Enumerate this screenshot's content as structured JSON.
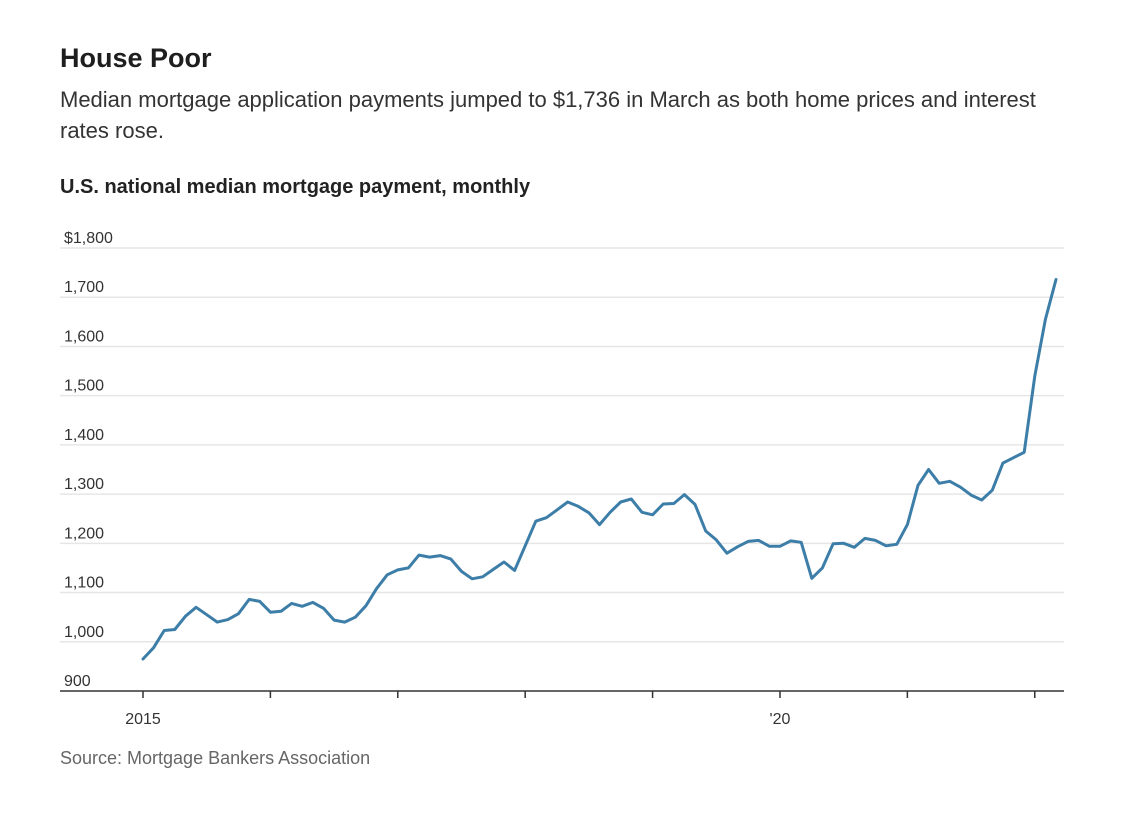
{
  "header": {
    "title": "House Poor",
    "subtitle": "Median mortgage application payments jumped to $1,736 in March as both home prices and interest rates rose."
  },
  "chart_label": "U.S. national median mortgage payment, monthly",
  "source": "Source: Mortgage Bankers Association",
  "colors": {
    "line": "#3d7ea9",
    "grid": "#e6e6e6",
    "axis": "#333333"
  },
  "chart_data": {
    "type": "line",
    "title": "U.S. national median mortgage payment, monthly",
    "xlabel": "",
    "ylabel": "",
    "ylim": [
      900,
      1800
    ],
    "y_ticks": [
      {
        "value": 900,
        "label": "900"
      },
      {
        "value": 1000,
        "label": "1,000"
      },
      {
        "value": 1100,
        "label": "1,100"
      },
      {
        "value": 1200,
        "label": "1,200"
      },
      {
        "value": 1300,
        "label": "1,300"
      },
      {
        "value": 1400,
        "label": "1,400"
      },
      {
        "value": 1500,
        "label": "1,500"
      },
      {
        "value": 1600,
        "label": "1,600"
      },
      {
        "value": 1700,
        "label": "1,700"
      },
      {
        "value": 1800,
        "label": "$1,800"
      }
    ],
    "x_ticks": [
      {
        "date": "2015-01",
        "label": "2015"
      },
      {
        "date": "2016-01",
        "label": ""
      },
      {
        "date": "2017-01",
        "label": ""
      },
      {
        "date": "2018-01",
        "label": ""
      },
      {
        "date": "2019-01",
        "label": ""
      },
      {
        "date": "2020-01",
        "label": "'20"
      },
      {
        "date": "2021-01",
        "label": ""
      },
      {
        "date": "2022-01",
        "label": ""
      }
    ],
    "x": [
      "2015-01",
      "2015-02",
      "2015-03",
      "2015-04",
      "2015-05",
      "2015-06",
      "2015-07",
      "2015-08",
      "2015-09",
      "2015-10",
      "2015-11",
      "2015-12",
      "2016-01",
      "2016-02",
      "2016-03",
      "2016-04",
      "2016-05",
      "2016-06",
      "2016-07",
      "2016-08",
      "2016-09",
      "2016-10",
      "2016-11",
      "2016-12",
      "2017-01",
      "2017-02",
      "2017-03",
      "2017-04",
      "2017-05",
      "2017-06",
      "2017-07",
      "2017-08",
      "2017-09",
      "2017-10",
      "2017-11",
      "2017-12",
      "2018-01",
      "2018-02",
      "2018-03",
      "2018-04",
      "2018-05",
      "2018-06",
      "2018-07",
      "2018-08",
      "2018-09",
      "2018-10",
      "2018-11",
      "2018-12",
      "2019-01",
      "2019-02",
      "2019-03",
      "2019-04",
      "2019-05",
      "2019-06",
      "2019-07",
      "2019-08",
      "2019-09",
      "2019-10",
      "2019-11",
      "2019-12",
      "2020-01",
      "2020-02",
      "2020-03",
      "2020-04",
      "2020-05",
      "2020-06",
      "2020-07",
      "2020-08",
      "2020-09",
      "2020-10",
      "2020-11",
      "2020-12",
      "2021-01",
      "2021-02",
      "2021-03",
      "2021-04",
      "2021-05",
      "2021-06",
      "2021-07",
      "2021-08",
      "2021-09",
      "2021-10",
      "2021-11",
      "2021-12",
      "2022-01",
      "2022-02",
      "2022-03"
    ],
    "series": [
      {
        "values": [
          965,
          988,
          1023,
          1025,
          1052,
          1070,
          1055,
          1040,
          1045,
          1057,
          1086,
          1082,
          1060,
          1062,
          1078,
          1072,
          1080,
          1068,
          1044,
          1040,
          1050,
          1073,
          1108,
          1136,
          1146,
          1150,
          1176,
          1172,
          1175,
          1168,
          1143,
          1128,
          1132,
          1147,
          1162,
          1145,
          1195,
          1245,
          1252,
          1268,
          1284,
          1275,
          1262,
          1238,
          1263,
          1284,
          1290,
          1263,
          1258,
          1280,
          1281,
          1299,
          1279,
          1225,
          1207,
          1180,
          1193,
          1204,
          1206,
          1194,
          1194,
          1205,
          1202,
          1129,
          1150,
          1199,
          1200,
          1192,
          1210,
          1206,
          1195,
          1198,
          1238,
          1318,
          1350,
          1322,
          1326,
          1314,
          1298,
          1288,
          1308,
          1363,
          1374,
          1385,
          1540,
          1655,
          1736
        ]
      }
    ]
  }
}
